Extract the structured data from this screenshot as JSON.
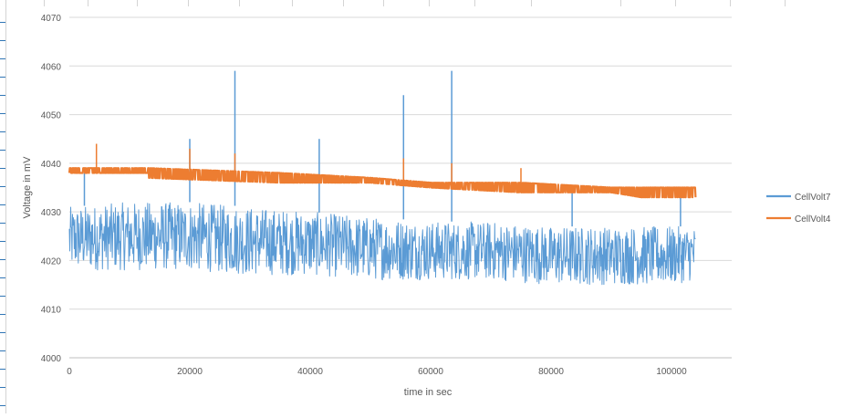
{
  "chart_data": {
    "type": "line",
    "title": "",
    "xlabel": "time in sec",
    "ylabel": "Voltage in mV",
    "xlim": [
      0,
      110000
    ],
    "ylim": [
      4000,
      4070
    ],
    "x_ticks": [
      "0",
      "20000",
      "40000",
      "60000",
      "80000",
      "100000"
    ],
    "y_ticks": [
      "4000",
      "4010",
      "4020",
      "4030",
      "4040",
      "4050",
      "4060",
      "4070"
    ],
    "grid": "horizontal",
    "legend_position": "right",
    "x_end": 104000,
    "series": [
      {
        "name": "CellVolt7",
        "color": "#5b9bd5",
        "band": [
          {
            "x": 0,
            "low": 4018,
            "high": 4031
          },
          {
            "x": 10000,
            "low": 4018,
            "high": 4032
          },
          {
            "x": 20000,
            "low": 4018,
            "high": 4032
          },
          {
            "x": 30000,
            "low": 4017,
            "high": 4031
          },
          {
            "x": 40000,
            "low": 4017,
            "high": 4030
          },
          {
            "x": 50000,
            "low": 4016,
            "high": 4029
          },
          {
            "x": 60000,
            "low": 4016,
            "high": 4028
          },
          {
            "x": 70000,
            "low": 4016,
            "high": 4028
          },
          {
            "x": 80000,
            "low": 4015,
            "high": 4027
          },
          {
            "x": 90000,
            "low": 4015,
            "high": 4027
          },
          {
            "x": 100000,
            "low": 4015,
            "high": 4027
          },
          {
            "x": 104000,
            "low": 4016,
            "high": 4027
          }
        ],
        "spikes": [
          {
            "x": 2500,
            "y": 4038
          },
          {
            "x": 20000,
            "y": 4045
          },
          {
            "x": 27500,
            "y": 4059
          },
          {
            "x": 41500,
            "y": 4045
          },
          {
            "x": 55500,
            "y": 4054
          },
          {
            "x": 63500,
            "y": 4059
          },
          {
            "x": 83500,
            "y": 4034
          },
          {
            "x": 101500,
            "y": 4033
          }
        ]
      },
      {
        "name": "CellVolt4",
        "color": "#ed7d31",
        "band": [
          {
            "x": 0,
            "low": 4038,
            "high": 4039
          },
          {
            "x": 13000,
            "low": 4038,
            "high": 4039
          },
          {
            "x": 13000,
            "low": 4037,
            "high": 4039
          },
          {
            "x": 35000,
            "low": 4036,
            "high": 4038
          },
          {
            "x": 50000,
            "low": 4036,
            "high": 4037
          },
          {
            "x": 60000,
            "low": 4035,
            "high": 4036
          },
          {
            "x": 75000,
            "low": 4034,
            "high": 4036
          },
          {
            "x": 90000,
            "low": 4034,
            "high": 4035
          },
          {
            "x": 95000,
            "low": 4033,
            "high": 4035
          },
          {
            "x": 104000,
            "low": 4033,
            "high": 4035
          }
        ],
        "spikes": [
          {
            "x": 4500,
            "y": 4044
          },
          {
            "x": 20000,
            "y": 4043
          },
          {
            "x": 27500,
            "y": 4042
          },
          {
            "x": 55500,
            "y": 4041
          },
          {
            "x": 63500,
            "y": 4040
          },
          {
            "x": 75000,
            "y": 4039
          }
        ]
      }
    ]
  }
}
